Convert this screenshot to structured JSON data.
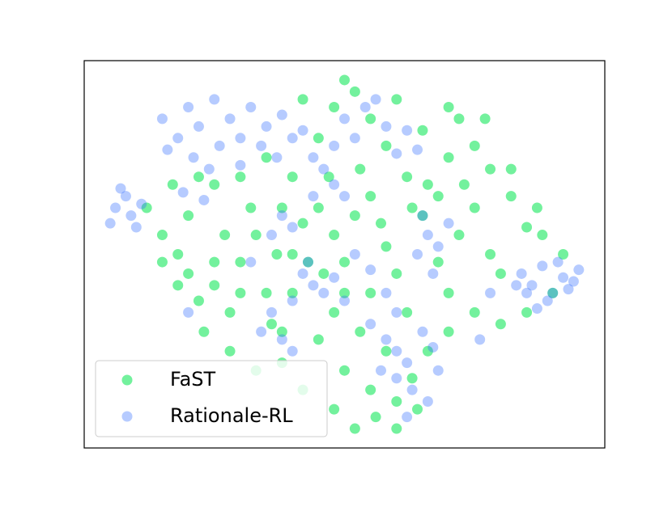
{
  "chart_data": {
    "type": "scatter",
    "xlim": [
      0,
      100
    ],
    "ylim": [
      0,
      100
    ],
    "legend": "lower left",
    "alpha": [
      0.55,
      0.35
    ],
    "series": [
      {
        "name": "FaST",
        "color": "#00e64d",
        "x": [
          20,
          22,
          18,
          25,
          28,
          30,
          33,
          35,
          38,
          40,
          42,
          45,
          48,
          50,
          52,
          55,
          58,
          60,
          62,
          65,
          68,
          70,
          72,
          75,
          78,
          80,
          85,
          88,
          82,
          78,
          75,
          72,
          70,
          65,
          60,
          58,
          55,
          52,
          50,
          48,
          45,
          42,
          40,
          38,
          35,
          30,
          25,
          20,
          15,
          18,
          23,
          28,
          33,
          38,
          42,
          48,
          52,
          56,
          60,
          63,
          66,
          58,
          53,
          48,
          45,
          40,
          55,
          62,
          70,
          75,
          80,
          85,
          90,
          92,
          87,
          82,
          77,
          70,
          66,
          53,
          47,
          43,
          37,
          32,
          27,
          22,
          17,
          12,
          15,
          25,
          30,
          36,
          50,
          55,
          60,
          64,
          50,
          57,
          63,
          68,
          73,
          46
        ],
        "values": [
          45,
          38,
          50,
          42,
          35,
          48,
          55,
          40,
          30,
          50,
          58,
          62,
          55,
          48,
          60,
          65,
          52,
          45,
          70,
          60,
          48,
          40,
          55,
          62,
          50,
          45,
          57,
          55,
          65,
          72,
          78,
          85,
          88,
          82,
          90,
          78,
          85,
          92,
          95,
          88,
          80,
          90,
          70,
          62,
          75,
          70,
          68,
          60,
          55,
          42,
          30,
          25,
          20,
          22,
          15,
          10,
          5,
          8,
          12,
          18,
          25,
          25,
          30,
          35,
          28,
          40,
          40,
          35,
          30,
          35,
          32,
          35,
          40,
          50,
          62,
          72,
          85,
          75,
          68,
          72,
          70,
          48,
          50,
          62,
          55,
          70,
          68,
          62,
          48,
          48,
          40,
          32,
          20,
          15,
          5,
          10,
          40,
          58,
          62,
          65,
          68,
          45
        ]
      },
      {
        "name": "Rationale-RL",
        "color": "#2f6bff",
        "x": [
          6,
          8,
          5,
          9,
          7,
          11,
          10,
          15,
          18,
          20,
          22,
          25,
          28,
          30,
          32,
          35,
          38,
          40,
          26,
          21,
          16,
          24,
          19,
          23,
          30,
          34,
          37,
          42,
          44,
          46,
          48,
          50,
          52,
          54,
          56,
          58,
          62,
          64,
          60,
          48,
          50,
          44,
          38,
          40,
          36,
          42,
          44,
          46,
          48,
          43,
          40,
          50,
          55,
          58,
          60,
          62,
          65,
          67,
          63,
          60,
          57,
          68,
          66,
          62,
          64,
          66,
          68,
          70,
          65,
          67,
          84,
          86,
          88,
          90,
          92,
          94,
          95,
          89,
          87,
          83,
          85,
          91,
          93,
          78,
          76,
          55,
          52,
          36,
          40,
          38,
          34,
          20,
          32,
          58,
          60
        ],
        "values": [
          62,
          65,
          58,
          60,
          67,
          63,
          57,
          85,
          80,
          88,
          83,
          90,
          85,
          80,
          88,
          83,
          86,
          80,
          78,
          75,
          77,
          72,
          66,
          64,
          73,
          78,
          75,
          82,
          75,
          72,
          78,
          85,
          80,
          88,
          90,
          83,
          82,
          77,
          76,
          68,
          65,
          65,
          60,
          57,
          55,
          45,
          42,
          40,
          44,
          48,
          38,
          38,
          32,
          28,
          25,
          22,
          30,
          26,
          15,
          18,
          20,
          20,
          12,
          8,
          50,
          55,
          52,
          58,
          60,
          45,
          45,
          42,
          47,
          40,
          44,
          43,
          46,
          38,
          36,
          42,
          40,
          48,
          41,
          40,
          28,
          46,
          50,
          35,
          25,
          28,
          30,
          35,
          48,
          40,
          35
        ]
      }
    ]
  }
}
